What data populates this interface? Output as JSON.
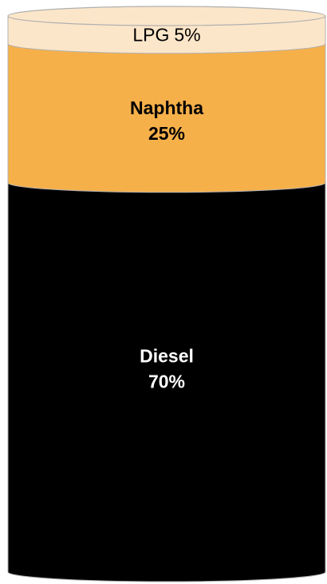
{
  "chart_data": {
    "type": "stacked-cylinder",
    "categories": [
      "LPG",
      "Naphtha",
      "Diesel"
    ],
    "values": [
      5,
      25,
      70
    ],
    "value_labels": [
      "5%",
      "25%",
      "70%"
    ],
    "colors": [
      "#fce6c9",
      "#f6b04a",
      "#000000"
    ]
  }
}
